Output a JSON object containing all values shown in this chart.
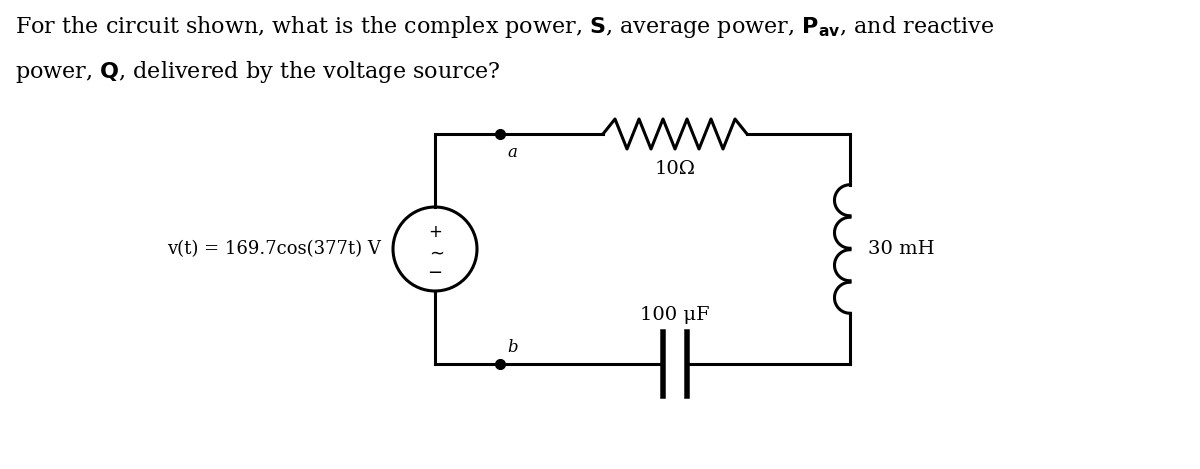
{
  "bg_color": "#ffffff",
  "text_color": "#000000",
  "line_color": "#000000",
  "lw": 2.2,
  "fig_width": 12.0,
  "fig_height": 4.69,
  "source_label": "v(t) = 169.7cos(377t) V",
  "resistor_label": "10Ω",
  "inductor_label": "30 mH",
  "capacitor_label": "100 μF",
  "node_a": "a",
  "node_b": "b",
  "title_fontsize": 16,
  "circuit_fontsize": 14
}
